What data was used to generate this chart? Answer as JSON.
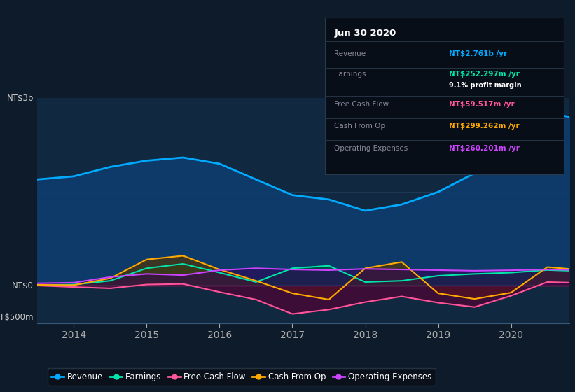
{
  "background_color": "#0d1b2a",
  "plot_bg_color": "#102840",
  "years": [
    2013.5,
    2014.0,
    2014.5,
    2015.0,
    2015.5,
    2016.0,
    2016.5,
    2017.0,
    2017.5,
    2018.0,
    2018.5,
    2019.0,
    2019.5,
    2020.0,
    2020.5,
    2020.8
  ],
  "revenue": [
    1700,
    1750,
    1900,
    2000,
    2050,
    1950,
    1700,
    1450,
    1380,
    1200,
    1300,
    1500,
    1800,
    2200,
    2761,
    2700
  ],
  "earnings": [
    10,
    20,
    80,
    280,
    350,
    210,
    60,
    280,
    320,
    60,
    80,
    160,
    190,
    210,
    252,
    240
  ],
  "free_cash_flow": [
    5,
    -20,
    -40,
    20,
    30,
    -100,
    -220,
    -450,
    -380,
    -260,
    -170,
    -270,
    -340,
    -160,
    60,
    50
  ],
  "cash_from_op": [
    15,
    10,
    120,
    420,
    480,
    260,
    80,
    -120,
    -220,
    280,
    380,
    -120,
    -210,
    -110,
    299,
    270
  ],
  "op_expenses": [
    40,
    50,
    140,
    190,
    170,
    250,
    280,
    260,
    250,
    270,
    260,
    250,
    240,
    248,
    260,
    255
  ],
  "revenue_color": "#00aaff",
  "earnings_color": "#00e5aa",
  "fcf_color": "#ff5599",
  "cashop_color": "#ffaa00",
  "opex_color": "#cc44ff",
  "revenue_fill": "#0d3d6e",
  "earnings_fill": "#004d3d",
  "fcf_fill": "#550033",
  "cashop_fill": "#553300",
  "opex_fill": "#330055",
  "ylabel_top": "NT$3b",
  "ylabel_zero": "NT$0",
  "ylabel_bot": "-NT$500m",
  "ymax": 3000,
  "ymin": -600,
  "xticks": [
    2014,
    2015,
    2016,
    2017,
    2018,
    2019,
    2020
  ],
  "xtick_labels": [
    "2014",
    "2015",
    "2016",
    "2017",
    "2018",
    "2019",
    "2020"
  ],
  "legend_labels": [
    "Revenue",
    "Earnings",
    "Free Cash Flow",
    "Cash From Op",
    "Operating Expenses"
  ],
  "info_date": "Jun 30 2020",
  "info_rows": [
    {
      "label": "Revenue",
      "value": "NT$2.761b /yr",
      "color": "#00aaff",
      "has_sub": false
    },
    {
      "label": "Earnings",
      "value": "NT$252.297m /yr",
      "color": "#00e5aa",
      "has_sub": true,
      "sub": "9.1% profit margin"
    },
    {
      "label": "Free Cash Flow",
      "value": "NT$59.517m /yr",
      "color": "#ff5599",
      "has_sub": false
    },
    {
      "label": "Cash From Op",
      "value": "NT$299.262m /yr",
      "color": "#ffaa00",
      "has_sub": false
    },
    {
      "label": "Operating Expenses",
      "value": "NT$260.201m /yr",
      "color": "#cc44ff",
      "has_sub": false
    }
  ]
}
